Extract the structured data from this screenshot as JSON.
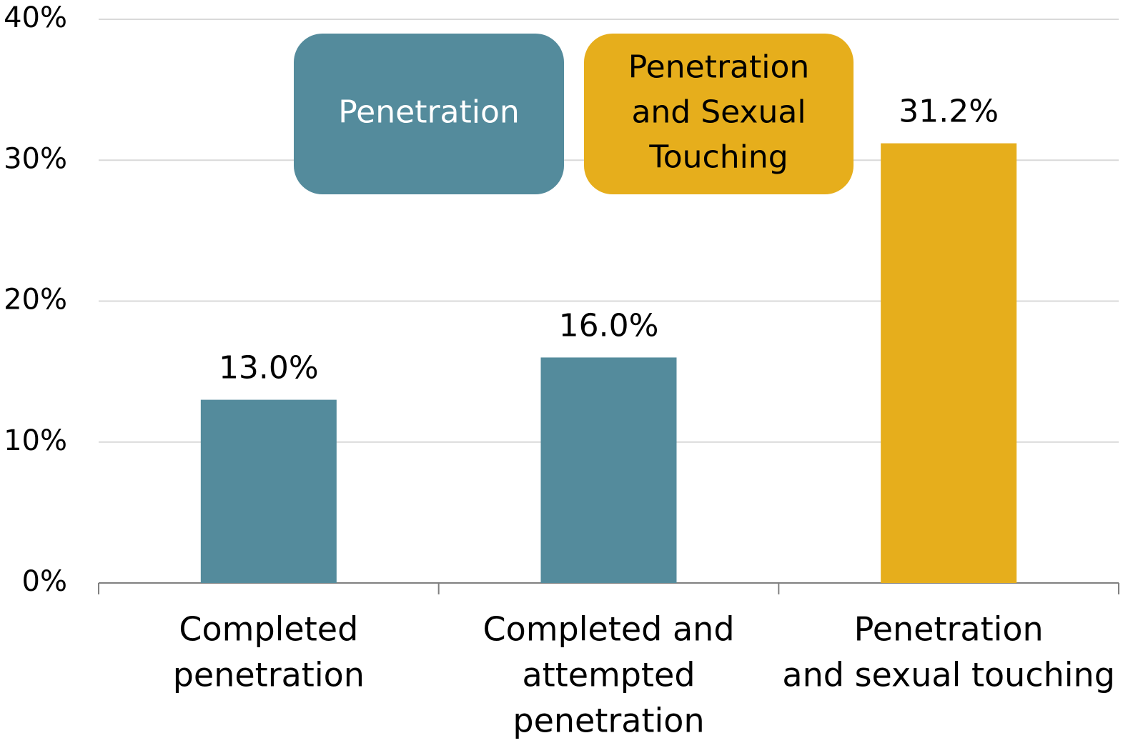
{
  "chart_data": {
    "type": "bar",
    "categories": [
      [
        "Completed",
        "penetration"
      ],
      [
        "Completed and",
        "attempted",
        "penetration"
      ],
      [
        "Penetration",
        "and sexual touching"
      ]
    ],
    "values": [
      13,
      16,
      31.2
    ],
    "value_labels": [
      "13.0%",
      "16.0%",
      "31.2%"
    ],
    "colors": [
      "#548b9c",
      "#548b9c",
      "#e6ae1c"
    ],
    "ylim": [
      0,
      40
    ],
    "yticks": [
      {
        "value": 0,
        "label": "0%"
      },
      {
        "value": 10,
        "label": "10%"
      },
      {
        "value": 20,
        "label": "20%"
      },
      {
        "value": 30,
        "label": "30%"
      },
      {
        "value": 40,
        "label": "40%"
      }
    ],
    "grid": true,
    "annotations": [
      {
        "lines": [
          "Penetration"
        ],
        "color": "#548b9c"
      },
      {
        "lines": [
          "Penetration",
          "and Sexual",
          "Touching"
        ],
        "color": "#e6ae1c"
      }
    ]
  }
}
